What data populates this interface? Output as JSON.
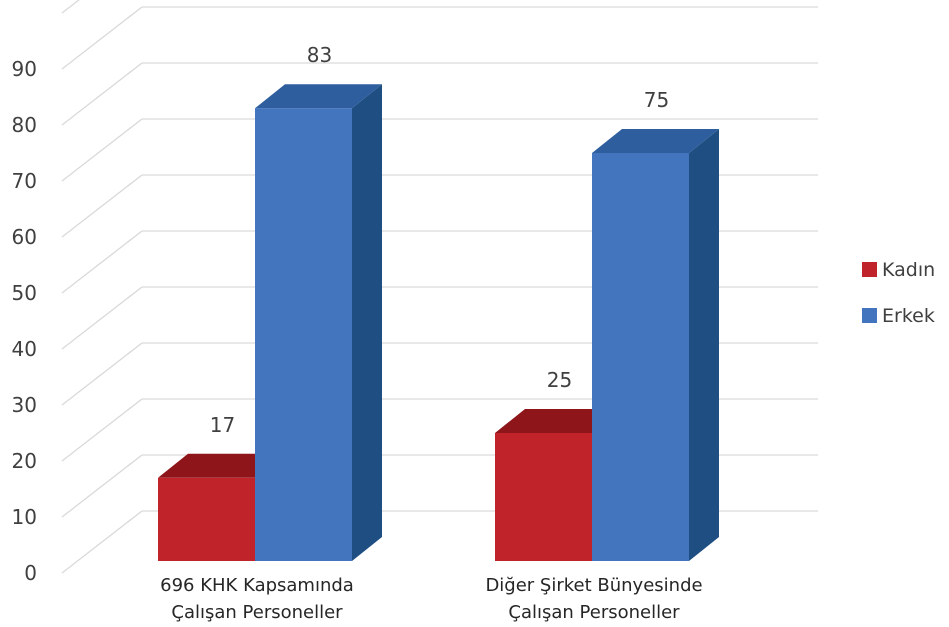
{
  "chart_data": {
    "type": "bar",
    "three_d": true,
    "categories": [
      [
        "696 KHK Kapsamında",
        "Çalışan Personeller"
      ],
      [
        "Diğer Şirket Bünyesinde",
        "Çalışan Personeller"
      ]
    ],
    "series": [
      {
        "name": "Kadın",
        "values": [
          17,
          25
        ],
        "color": "#C0232A",
        "side_color": "#8E161B",
        "top_color": "#8E161B"
      },
      {
        "name": "Erkek",
        "values": [
          83,
          75
        ],
        "color": "#4275BE",
        "side_color": "#1F4E82",
        "top_color": "#2E5E9E"
      }
    ],
    "y_ticks": [
      "0",
      "10",
      "20",
      "30",
      "40",
      "50",
      "60",
      "70",
      "80",
      "90"
    ],
    "ylim": [
      0,
      90
    ],
    "grid": true,
    "legend_position": "right",
    "data_labels": true
  }
}
